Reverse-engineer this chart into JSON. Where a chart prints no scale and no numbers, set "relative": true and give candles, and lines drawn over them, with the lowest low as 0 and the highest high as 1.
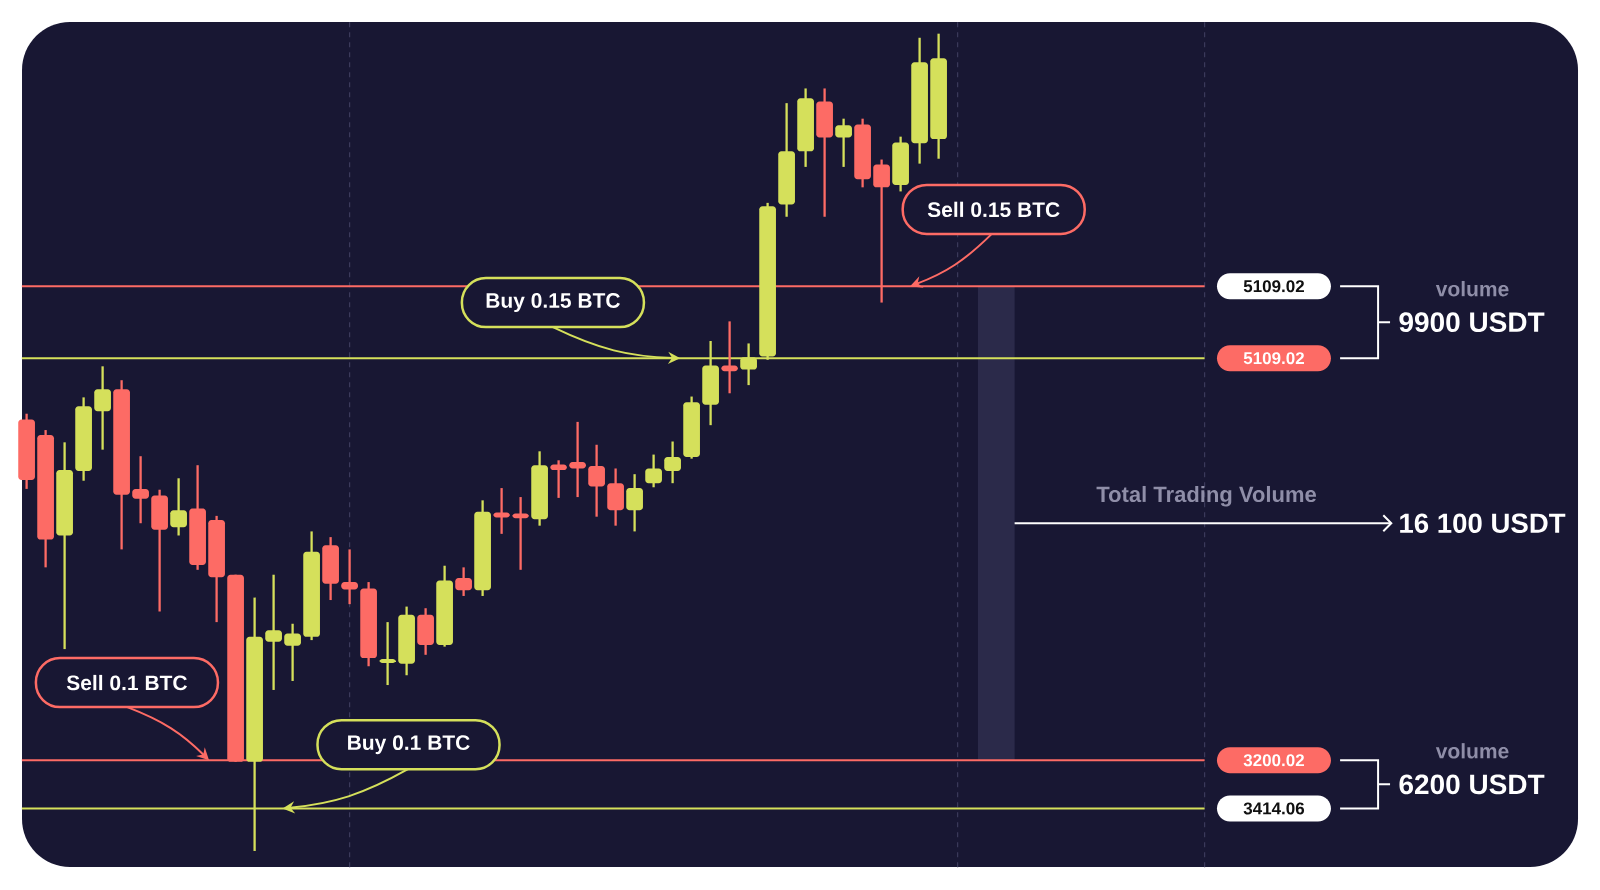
{
  "chart_data": {
    "type": "candlestick",
    "relative": true,
    "categories": [
      null,
      null,
      null,
      null,
      null,
      null,
      null,
      null,
      null,
      null,
      null,
      null,
      null,
      null,
      null,
      null,
      null,
      null,
      null,
      null,
      null,
      null,
      null,
      null,
      null,
      null,
      null,
      null,
      null,
      null,
      null,
      null,
      null,
      null,
      null,
      null,
      null,
      null,
      null,
      null,
      null,
      null,
      null,
      null,
      null,
      null,
      null,
      null,
      null
    ],
    "ohlc": [
      [
        0.528,
        0.535,
        0.443,
        0.454
      ],
      [
        0.509,
        0.515,
        0.347,
        0.381
      ],
      [
        0.386,
        0.5,
        0.247,
        0.466
      ],
      [
        0.465,
        0.555,
        0.453,
        0.544
      ],
      [
        0.538,
        0.593,
        0.491,
        0.565
      ],
      [
        0.565,
        0.576,
        0.369,
        0.436
      ],
      [
        0.443,
        0.483,
        0.401,
        0.431
      ],
      [
        0.435,
        0.442,
        0.293,
        0.393
      ],
      [
        0.396,
        0.456,
        0.386,
        0.417
      ],
      [
        0.419,
        0.472,
        0.344,
        0.35
      ],
      [
        0.405,
        0.41,
        0.28,
        0.335
      ],
      [
        0.338,
        0.338,
        0.109,
        0.109
      ],
      [
        0.109,
        0.31,
        0,
        0.262
      ],
      [
        0.256,
        0.338,
        0.197,
        0.27
      ],
      [
        0.251,
        0.278,
        0.208,
        0.266
      ],
      [
        0.262,
        0.391,
        0.258,
        0.366
      ],
      [
        0.374,
        0.384,
        0.307,
        0.327
      ],
      [
        0.329,
        0.369,
        0.302,
        0.32
      ],
      [
        0.321,
        0.329,
        0.226,
        0.236
      ],
      [
        0.23,
        0.28,
        0.203,
        0.235
      ],
      [
        0.229,
        0.299,
        0.215,
        0.289
      ],
      [
        0.289,
        0.297,
        0.24,
        0.252
      ],
      [
        0.252,
        0.349,
        0.25,
        0.331
      ],
      [
        0.334,
        0.347,
        0.312,
        0.319
      ],
      [
        0.319,
        0.429,
        0.312,
        0.415
      ],
      [
        0.414,
        0.444,
        0.388,
        0.408
      ],
      [
        0.413,
        0.433,
        0.344,
        0.407
      ],
      [
        0.406,
        0.489,
        0.398,
        0.472
      ],
      [
        0.473,
        0.478,
        0.432,
        0.466
      ],
      [
        0.476,
        0.525,
        0.433,
        0.468
      ],
      [
        0.471,
        0.497,
        0.409,
        0.446
      ],
      [
        0.45,
        0.468,
        0.398,
        0.417
      ],
      [
        0.417,
        0.461,
        0.391,
        0.444
      ],
      [
        0.45,
        0.485,
        0.445,
        0.468
      ],
      [
        0.465,
        0.501,
        0.45,
        0.482
      ],
      [
        0.482,
        0.556,
        0.48,
        0.549
      ],
      [
        0.546,
        0.624,
        0.521,
        0.594
      ],
      [
        0.594,
        0.648,
        0.56,
        0.587
      ],
      [
        0.589,
        0.621,
        0.57,
        0.604
      ],
      [
        0.605,
        0.793,
        0.601,
        0.789
      ],
      [
        0.791,
        0.915,
        0.776,
        0.856
      ],
      [
        0.856,
        0.933,
        0.837,
        0.921
      ],
      [
        0.917,
        0.933,
        0.776,
        0.873
      ],
      [
        0.873,
        0.896,
        0.837,
        0.888
      ],
      [
        0.889,
        0.896,
        0.812,
        0.822
      ],
      [
        0.84,
        0.846,
        0.671,
        0.812
      ],
      [
        0.815,
        0.874,
        0.807,
        0.867
      ],
      [
        0.866,
        0.995,
        0.841,
        0.965
      ],
      [
        0.871,
        1,
        0.847,
        0.97
      ]
    ],
    "colors": [
      "#fd6b65",
      "#fd6b65",
      "#d5e05b",
      "#d5e05b",
      "#d5e05b",
      "#fd6b65",
      "#fd6b65",
      "#fd6b65",
      "#d5e05b",
      "#fd6b65",
      "#fd6b65",
      "#fd6b65",
      "#d5e05b",
      "#d5e05b",
      "#d5e05b",
      "#d5e05b",
      "#fd6b65",
      "#fd6b65",
      "#fd6b65",
      "#d5e05b",
      "#d5e05b",
      "#fd6b65",
      "#d5e05b",
      "#fd6b65",
      "#d5e05b",
      "#fd6b65",
      "#fd6b65",
      "#d5e05b",
      "#fd6b65",
      "#fd6b65",
      "#fd6b65",
      "#fd6b65",
      "#d5e05b",
      "#d5e05b",
      "#d5e05b",
      "#d5e05b",
      "#d5e05b",
      "#fd6b65",
      "#d5e05b",
      "#d5e05b",
      "#d5e05b",
      "#d5e05b",
      "#fd6b65",
      "#d5e05b",
      "#fd6b65",
      "#fd6b65",
      "#d5e05b",
      "#d5e05b",
      "#d5e05b"
    ],
    "ref_lines": [
      {
        "axis": "y",
        "value": 0.691,
        "color": "#fd6b65"
      },
      {
        "axis": "y",
        "value": 0.603,
        "color": "#d5e05b"
      },
      {
        "axis": "y",
        "value": 0.111,
        "color": "#fd6b65"
      },
      {
        "axis": "y",
        "value": 0.052,
        "color": "#d5e05b"
      }
    ],
    "annotations": [
      "Sell 0.15 BTC",
      {
        "text": "Buy 0.15 BTC",
        "y": 0.603
      },
      "Sell 0.1 BTC",
      {
        "text": "Buy 0.1 BTC",
        "y": 0.052
      },
      "5109.02",
      "5109.02",
      "3200.02",
      "3414.06",
      "volume",
      "9900 USDT",
      "Total Trading Volume",
      "16 100 USDT",
      "volume",
      "6200 USDT"
    ]
  }
}
